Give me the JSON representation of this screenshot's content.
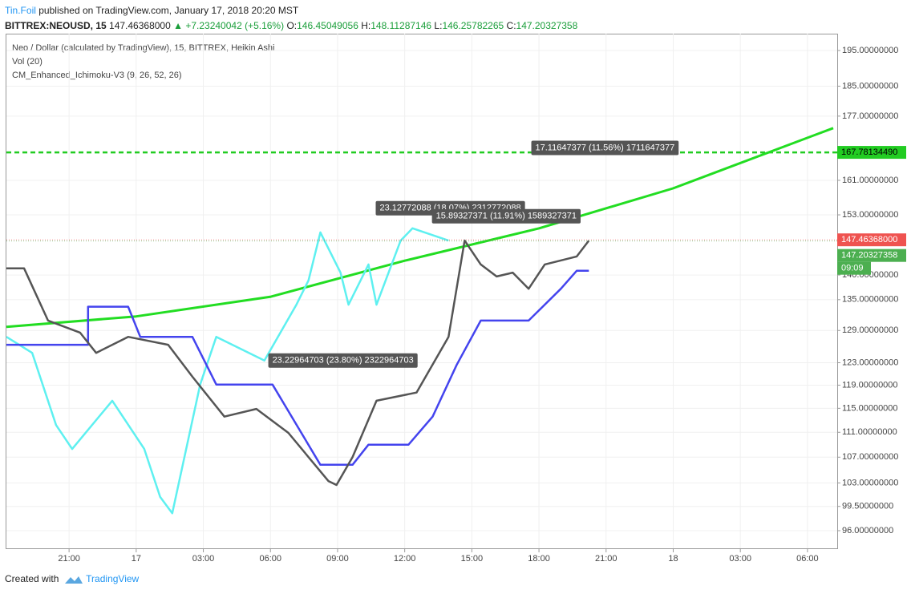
{
  "header": {
    "author": "Tin.Foil",
    "published": "published on TradingView.com, January 17, 2018 20:20 MST",
    "symbol": "BITTREX:NEOUSD, 15",
    "last": "147.46368000",
    "change": "▲ +7.23240042 (+5.16%)",
    "ohlc": [
      {
        "label": "O:",
        "value": "146.45049056"
      },
      {
        "label": "H:",
        "value": "148.11287146"
      },
      {
        "label": "L:",
        "value": "146.25782265"
      },
      {
        "label": "C:",
        "value": "147.20327358"
      }
    ]
  },
  "legend": [
    "Neo / Dollar (calculated by TradingView), 15, BITTREX, Heikin Ashi",
    "Vol (20)",
    "CM_Enhanced_Ichimoku-V3 (9, 26, 52, 26)"
  ],
  "footer": {
    "created": "Created with",
    "brand": "TradingView"
  },
  "chart_data": {
    "type": "line",
    "log_scale": true,
    "grid": true,
    "xlim": [
      -5.8,
      31.33
    ],
    "ylim": [
      96,
      195
    ],
    "xticks": [
      {
        "value": -3,
        "label": "21:00"
      },
      {
        "value": 0,
        "label": "17"
      },
      {
        "value": 3,
        "label": "03:00"
      },
      {
        "value": 6,
        "label": "06:00"
      },
      {
        "value": 9,
        "label": "09:00"
      },
      {
        "value": 12,
        "label": "12:00"
      },
      {
        "value": 15,
        "label": "15:00"
      },
      {
        "value": 18,
        "label": "18:00"
      },
      {
        "value": 21,
        "label": "21:00"
      },
      {
        "value": 24,
        "label": "18"
      },
      {
        "value": 27,
        "label": "03:00"
      },
      {
        "value": 30,
        "label": "06:00"
      }
    ],
    "yticks": [
      {
        "value": 96,
        "label": "96.00000000"
      },
      {
        "value": 99.5,
        "label": "99.50000000"
      },
      {
        "value": 103,
        "label": "103.00000000"
      },
      {
        "value": 107,
        "label": "107.00000000"
      },
      {
        "value": 111,
        "label": "111.00000000"
      },
      {
        "value": 115,
        "label": "115.00000000"
      },
      {
        "value": 119,
        "label": "119.00000000"
      },
      {
        "value": 123,
        "label": "123.00000000"
      },
      {
        "value": 129,
        "label": "129.00000000"
      },
      {
        "value": 135,
        "label": "135.00000000"
      },
      {
        "value": 140,
        "label": "140.00000000"
      },
      {
        "value": 153,
        "label": "153.00000000"
      },
      {
        "value": 161,
        "label": "161.00000000"
      },
      {
        "value": 177,
        "label": "177.00000000"
      },
      {
        "value": 185,
        "label": "185.00000000"
      },
      {
        "value": 195,
        "label": "195.00000000"
      }
    ],
    "series": [
      {
        "color": "#22dd22",
        "width": 3,
        "x": [
          -5.8,
          0,
          6.02,
          12,
          18.01,
          23.99,
          31.15
        ],
        "values": [
          129.7,
          131.7,
          135.6,
          143.0,
          150.0,
          159.1,
          173.9
        ]
      },
      {
        "color": "#5ef0f0",
        "width": 2.5,
        "x": [
          -5.8,
          -4.65,
          -3.58,
          -2.86,
          -1.07,
          0.36,
          1.07,
          1.61,
          2.86,
          3.58,
          5.73,
          7.16,
          7.7,
          8.23,
          9.13,
          9.49,
          10.38,
          10.74,
          11.82,
          12.35,
          13.96
        ],
        "values": [
          127.8,
          124.8,
          112.2,
          108.3,
          116.3,
          108.3,
          100.9,
          98.5,
          119.1,
          127.8,
          123.4,
          134.0,
          138.9,
          149.1,
          140.5,
          134.0,
          142.2,
          134.0,
          147.3,
          150.0,
          147.3
        ]
      },
      {
        "color": "#4444ee",
        "width": 2.5,
        "x": [
          -5.8,
          -2.15,
          -2.15,
          -0.36,
          0.18,
          2.51,
          3.58,
          6.09,
          8.23,
          9.67,
          10.38,
          12.17,
          13.25,
          14.32,
          15.4,
          16.11,
          17.54,
          18.98,
          19.69,
          20.23
        ],
        "values": [
          126.3,
          126.3,
          133.6,
          133.6,
          127.8,
          127.8,
          119.1,
          119.1,
          105.8,
          105.8,
          109.0,
          109.0,
          113.6,
          122.6,
          130.9,
          130.9,
          130.9,
          137.2,
          140.9,
          140.9
        ]
      },
      {
        "color": "#555555",
        "width": 2.5,
        "x": [
          -5.8,
          -5.01,
          -3.94,
          -2.51,
          -1.79,
          -0.36,
          1.43,
          2.51,
          3.94,
          5.37,
          6.8,
          8.59,
          8.95,
          9.67,
          10.74,
          12.53,
          13.96,
          14.68,
          15.4,
          16.11,
          16.83,
          17.54,
          18.26,
          19.69,
          20.23
        ],
        "values": [
          141.4,
          141.4,
          130.9,
          128.6,
          124.8,
          127.8,
          126.3,
          120.5,
          113.6,
          114.9,
          110.9,
          103.3,
          102.7,
          107.0,
          116.3,
          117.7,
          127.8,
          147.3,
          142.2,
          139.7,
          140.5,
          137.2,
          142.2,
          143.9,
          147.3
        ]
      }
    ],
    "levels": [
      {
        "value": 167.7813449,
        "label": "167.78134490",
        "color": "#22cc22"
      }
    ],
    "price_labels": [
      {
        "value": 147.46368,
        "label": "147.46368000",
        "color": "#ef5350"
      },
      {
        "value": 147.20327358,
        "label": "147.20327358",
        "color": "#4caf50",
        "sub": "09:09"
      }
    ],
    "annotations": [
      {
        "text": "17.11647377 (11.56%) 1711647377",
        "x": 20.95,
        "y": 168.9
      },
      {
        "text": "23.12772088 (18.07%) 2312772088",
        "x": 14.04,
        "y": 154.5
      },
      {
        "text": "15.89327371 (11.91%) 1589327371",
        "x": 16.54,
        "y": 152.7
      },
      {
        "text": "23.22964703 (23.80%) 2322964703",
        "x": 9.24,
        "y": 123.4
      }
    ]
  }
}
